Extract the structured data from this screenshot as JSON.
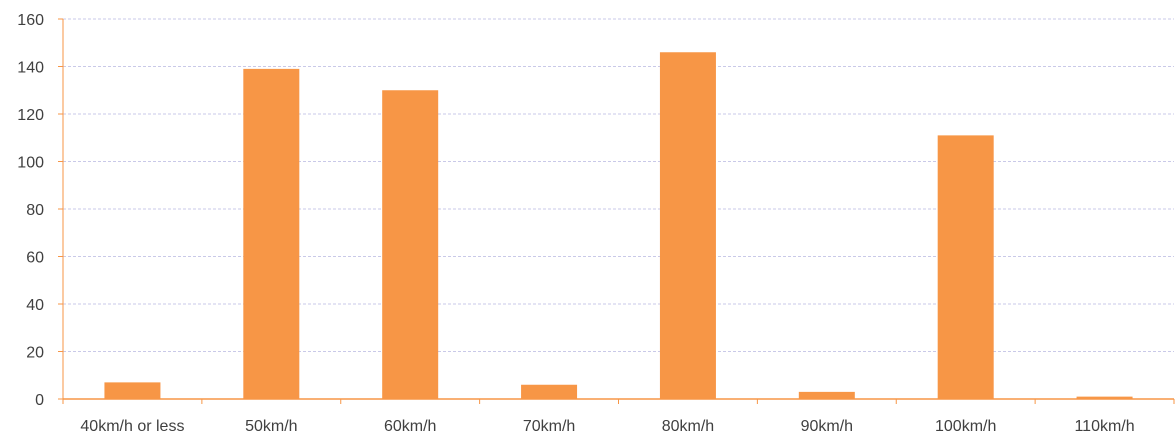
{
  "chart_data": {
    "type": "bar",
    "categories": [
      "40km/h or less",
      "50km/h",
      "60km/h",
      "70km/h",
      "80km/h",
      "90km/h",
      "100km/h",
      "110km/h"
    ],
    "values": [
      7,
      139,
      130,
      6,
      146,
      3,
      111,
      1
    ],
    "ylim": [
      0,
      160
    ],
    "yticks": [
      0,
      20,
      40,
      60,
      80,
      100,
      120,
      140,
      160
    ],
    "title": "",
    "xlabel": "",
    "ylabel": "",
    "grid": true,
    "legend": "none",
    "colors": {
      "bar": "#F79646",
      "axis": "#F79646",
      "gridline": "#C9C9E8",
      "text": "#404040"
    }
  }
}
